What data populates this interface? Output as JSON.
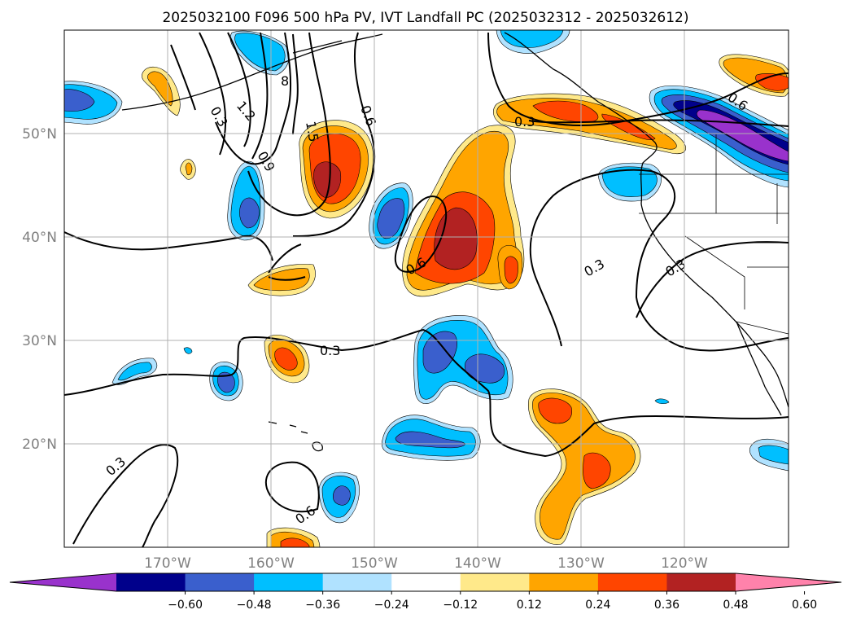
{
  "title": "2025032100 F096 500 hPa PV, IVT Landfall PC (2025032312 - 2025032612)",
  "map": {
    "lon_range": [
      -180,
      -110
    ],
    "lat_range": [
      10,
      60
    ],
    "lat_labels": [
      "20°N",
      "30°N",
      "40°N",
      "50°N"
    ],
    "lon_labels": [
      "170°W",
      "160°W",
      "150°W",
      "140°W",
      "130°W",
      "120°W"
    ],
    "grid": true
  },
  "colorbar": {
    "ticks": [
      "−0.60",
      "−0.48",
      "−0.36",
      "−0.24",
      "−0.12",
      "0.12",
      "0.24",
      "0.36",
      "0.48",
      "0.60"
    ],
    "colors": [
      "#9932cc",
      "#00008b",
      "#3a5fcd",
      "#00bfff",
      "#b0e2ff",
      "#ffffff",
      "#ffe98a",
      "#ffa500",
      "#ff4500",
      "#b22222",
      "#ff82ab"
    ]
  },
  "contour_labels": [
    "0.3",
    "0.6",
    "0.9",
    "1.2",
    "1.5",
    "8",
    "0.6",
    "0.3",
    "0.6",
    "0.3",
    "0.3",
    "0.3",
    "0.3",
    "0.6"
  ]
}
